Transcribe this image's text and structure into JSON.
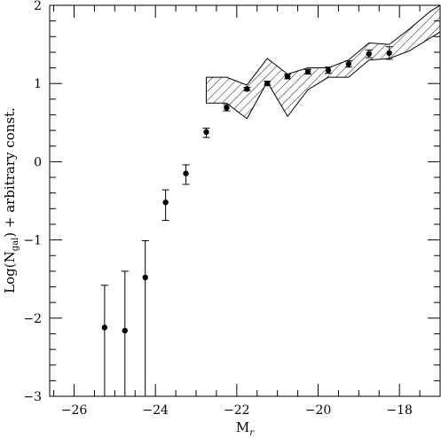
{
  "chart_data": {
    "type": "scatter",
    "title": "",
    "xlabel": {
      "main": "M",
      "sub": "r"
    },
    "ylabel": {
      "pre": "Log(N",
      "sub": "gal",
      "post": ") + arbitrary const."
    },
    "xlim": [
      -26.6,
      -17.0
    ],
    "ylim": [
      -3,
      2
    ],
    "xticks_major": [
      -26,
      -24,
      -22,
      -20,
      -18
    ],
    "xtick_labels": [
      "−26",
      "−24",
      "−22",
      "−20",
      "−18"
    ],
    "yticks_major": [
      -3,
      -2,
      -1,
      0,
      1,
      2
    ],
    "ytick_labels": [
      "−3",
      "−2",
      "−1",
      "0",
      "1",
      "2"
    ],
    "grid": false,
    "points": [
      {
        "x": -25.25,
        "y": -2.12,
        "yerr_low": -3.0,
        "yerr_high": -1.58
      },
      {
        "x": -24.75,
        "y": -2.16,
        "yerr_low": -3.0,
        "yerr_high": -1.4
      },
      {
        "x": -24.25,
        "y": -1.48,
        "yerr_low": -3.0,
        "yerr_high": -1.01
      },
      {
        "x": -23.75,
        "y": -0.52,
        "yerr_low": -0.75,
        "yerr_high": -0.36
      },
      {
        "x": -23.25,
        "y": -0.15,
        "yerr_low": -0.29,
        "yerr_high": -0.04
      },
      {
        "x": -22.75,
        "y": 0.38,
        "yerr_low": 0.31,
        "yerr_high": 0.43
      },
      {
        "x": -22.25,
        "y": 0.69,
        "yerr_low": 0.65,
        "yerr_high": 0.73
      },
      {
        "x": -21.75,
        "y": 0.93,
        "yerr_low": 0.91,
        "yerr_high": 0.95
      },
      {
        "x": -21.25,
        "y": 1.0,
        "yerr_low": 0.98,
        "yerr_high": 1.03
      },
      {
        "x": -20.75,
        "y": 1.09,
        "yerr_low": 1.06,
        "yerr_high": 1.12
      },
      {
        "x": -20.25,
        "y": 1.15,
        "yerr_low": 1.12,
        "yerr_high": 1.18
      },
      {
        "x": -19.75,
        "y": 1.17,
        "yerr_low": 1.13,
        "yerr_high": 1.21
      },
      {
        "x": -19.25,
        "y": 1.25,
        "yerr_low": 1.21,
        "yerr_high": 1.29
      },
      {
        "x": -18.75,
        "y": 1.38,
        "yerr_low": 1.33,
        "yerr_high": 1.43
      },
      {
        "x": -18.25,
        "y": 1.39,
        "yerr_low": 1.31,
        "yerr_high": 1.47
      }
    ],
    "band": {
      "upper": [
        [
          -22.75,
          1.08
        ],
        [
          -22.25,
          1.08
        ],
        [
          -21.75,
          0.98
        ],
        [
          -21.25,
          1.32
        ],
        [
          -20.75,
          1.12
        ],
        [
          -20.25,
          1.2
        ],
        [
          -19.75,
          1.2
        ],
        [
          -19.25,
          1.3
        ],
        [
          -18.75,
          1.52
        ],
        [
          -18.25,
          1.5
        ],
        [
          -17.75,
          1.7
        ],
        [
          -17.25,
          1.92
        ],
        [
          -17.0,
          2.0
        ]
      ],
      "lower": [
        [
          -22.75,
          0.75
        ],
        [
          -22.25,
          0.75
        ],
        [
          -21.75,
          0.55
        ],
        [
          -21.25,
          1.02
        ],
        [
          -20.75,
          0.58
        ],
        [
          -20.25,
          0.92
        ],
        [
          -19.75,
          1.08
        ],
        [
          -19.25,
          1.08
        ],
        [
          -18.75,
          1.3
        ],
        [
          -18.25,
          1.32
        ],
        [
          -17.75,
          1.42
        ],
        [
          -17.25,
          1.58
        ],
        [
          -17.0,
          1.66
        ]
      ]
    }
  }
}
